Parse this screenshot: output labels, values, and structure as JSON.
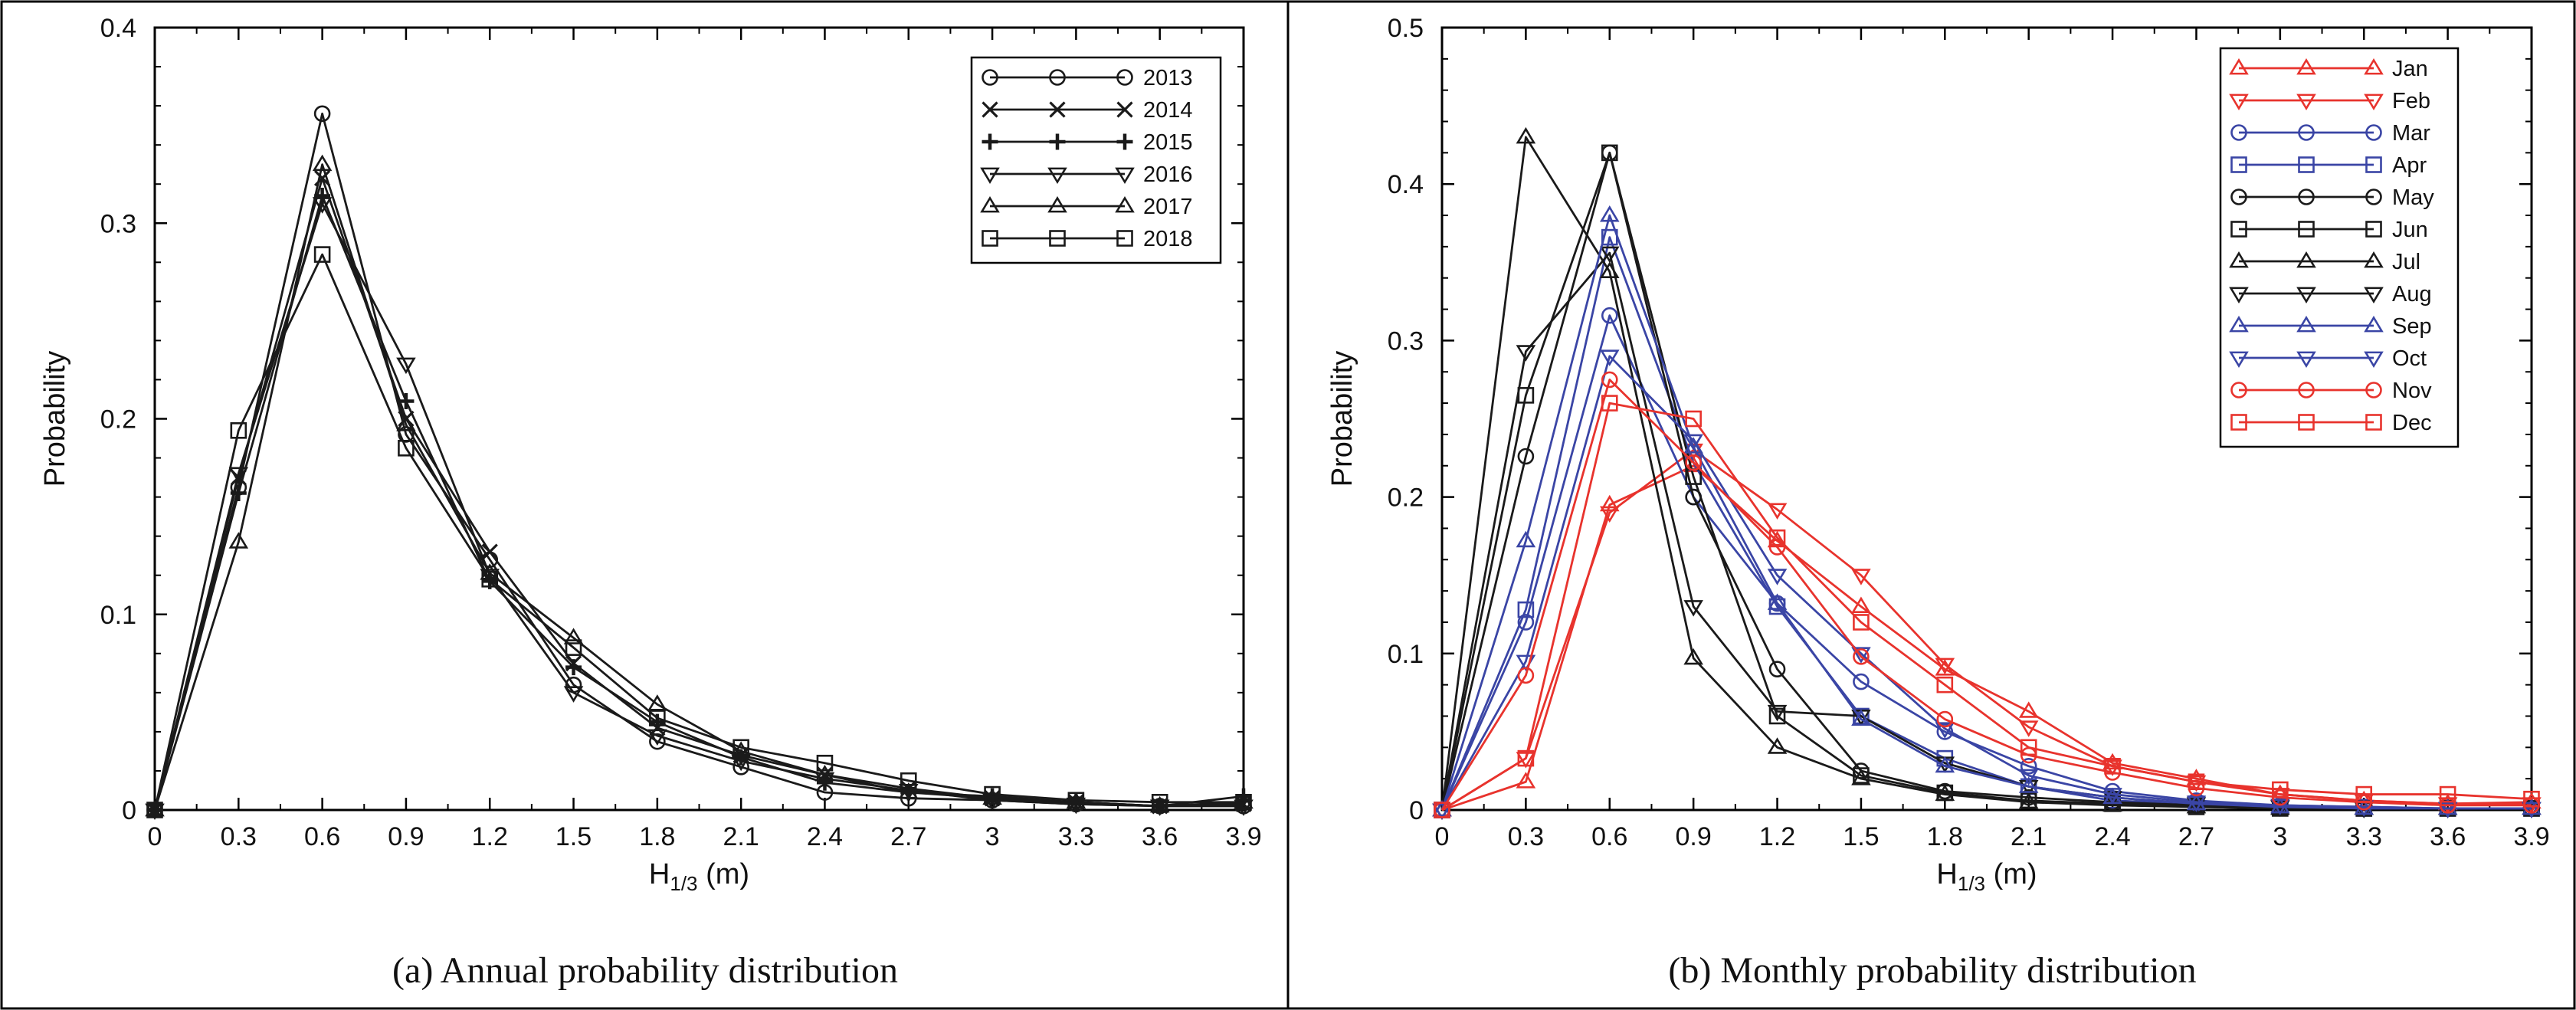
{
  "chart_data": [
    {
      "type": "line",
      "caption": "(a) Annual probability distribution",
      "xlabel_main": "H",
      "xlabel_sub": "1/3",
      "xlabel_unit": " (m)",
      "ylabel": "Probability",
      "xlim": [
        0,
        3.9
      ],
      "ylim": [
        0,
        0.4
      ],
      "x_ticks": [
        "0",
        "0.3",
        "0.6",
        "0.9",
        "1.2",
        "1.5",
        "1.8",
        "2.1",
        "2.4",
        "2.7",
        "3",
        "3.3",
        "3.6",
        "3.9"
      ],
      "y_ticks": [
        "0",
        "0.1",
        "0.2",
        "0.3",
        "0.4"
      ],
      "x": [
        0,
        0.3,
        0.6,
        0.9,
        1.2,
        1.5,
        1.8,
        2.1,
        2.4,
        2.7,
        3.0,
        3.3,
        3.6,
        3.9
      ],
      "legend_position": "top-right",
      "series": [
        {
          "name": "2013",
          "marker": "circle",
          "color": "#1a1a1a",
          "values": [
            0,
            0.165,
            0.356,
            0.192,
            0.128,
            0.064,
            0.035,
            0.022,
            0.009,
            0.006,
            0.005,
            0.003,
            0.002,
            0.002
          ]
        },
        {
          "name": "2014",
          "marker": "x",
          "color": "#1a1a1a",
          "values": [
            0,
            0.17,
            0.323,
            0.2,
            0.132,
            0.075,
            0.042,
            0.028,
            0.018,
            0.011,
            0.006,
            0.004,
            0.002,
            0.003
          ]
        },
        {
          "name": "2015",
          "marker": "plus",
          "color": "#1a1a1a",
          "values": [
            0,
            0.162,
            0.314,
            0.209,
            0.117,
            0.073,
            0.045,
            0.027,
            0.014,
            0.009,
            0.007,
            0.004,
            0.002,
            0.007
          ]
        },
        {
          "name": "2016",
          "marker": "tri-down",
          "color": "#1a1a1a",
          "values": [
            0,
            0.172,
            0.31,
            0.228,
            0.12,
            0.06,
            0.038,
            0.025,
            0.016,
            0.01,
            0.005,
            0.003,
            0.002,
            0.002
          ]
        },
        {
          "name": "2017",
          "marker": "tri-up",
          "color": "#1a1a1a",
          "values": [
            0,
            0.137,
            0.33,
            0.197,
            0.121,
            0.088,
            0.054,
            0.03,
            0.018,
            0.009,
            0.006,
            0.004,
            0.002,
            0.004
          ]
        },
        {
          "name": "2018",
          "marker": "square",
          "color": "#1a1a1a",
          "values": [
            0,
            0.194,
            0.284,
            0.185,
            0.118,
            0.083,
            0.047,
            0.032,
            0.024,
            0.015,
            0.008,
            0.005,
            0.004,
            0.004
          ]
        }
      ]
    },
    {
      "type": "line",
      "caption": "(b) Monthly probability distribution",
      "xlabel_main": "H",
      "xlabel_sub": "1/3",
      "xlabel_unit": " (m)",
      "ylabel": "Probability",
      "xlim": [
        0,
        3.9
      ],
      "ylim": [
        0,
        0.5
      ],
      "x_ticks": [
        "0",
        "0.3",
        "0.6",
        "0.9",
        "1.2",
        "1.5",
        "1.8",
        "2.1",
        "2.4",
        "2.7",
        "3",
        "3.3",
        "3.6",
        "3.9"
      ],
      "y_ticks": [
        "0",
        "0.1",
        "0.2",
        "0.3",
        "0.4",
        "0.5"
      ],
      "x": [
        0,
        0.3,
        0.6,
        0.9,
        1.2,
        1.5,
        1.8,
        2.1,
        2.4,
        2.7,
        3.0,
        3.3,
        3.6,
        3.9
      ],
      "legend_position": "top-right",
      "series": [
        {
          "name": "Jan",
          "marker": "tri-up",
          "color": "#e8332d",
          "values": [
            0,
            0.018,
            0.195,
            0.22,
            0.172,
            0.13,
            0.09,
            0.063,
            0.03,
            0.02,
            0.01,
            0.006,
            0.004,
            0.005
          ]
        },
        {
          "name": "Feb",
          "marker": "tri-down",
          "color": "#e8332d",
          "values": [
            0,
            0.033,
            0.19,
            0.23,
            0.192,
            0.15,
            0.093,
            0.053,
            0.028,
            0.018,
            0.01,
            0.006,
            0.004,
            0.004
          ]
        },
        {
          "name": "Mar",
          "marker": "circle",
          "color": "#3a45a5",
          "values": [
            0,
            0.12,
            0.316,
            0.2,
            0.132,
            0.082,
            0.05,
            0.028,
            0.012,
            0.006,
            0.003,
            0.002,
            0.001,
            0.001
          ]
        },
        {
          "name": "Apr",
          "marker": "square",
          "color": "#3a45a5",
          "values": [
            0,
            0.128,
            0.366,
            0.222,
            0.13,
            0.06,
            0.033,
            0.015,
            0.006,
            0.004,
            0.002,
            0.001,
            0.001,
            0.001
          ]
        },
        {
          "name": "May",
          "marker": "circle",
          "color": "#1a1a1a",
          "values": [
            0,
            0.226,
            0.42,
            0.2,
            0.09,
            0.025,
            0.012,
            0.008,
            0.005,
            0.003,
            0.002,
            0.001,
            0.001,
            0.001
          ]
        },
        {
          "name": "Jun",
          "marker": "square",
          "color": "#1a1a1a",
          "values": [
            0,
            0.265,
            0.42,
            0.213,
            0.06,
            0.022,
            0.011,
            0.006,
            0.004,
            0.002,
            0.001,
            0.001,
            0.001,
            0.001
          ]
        },
        {
          "name": "Jul",
          "marker": "tri-up",
          "color": "#1a1a1a",
          "values": [
            0,
            0.43,
            0.344,
            0.097,
            0.04,
            0.02,
            0.01,
            0.005,
            0.003,
            0.002,
            0.001,
            0.001,
            0.001,
            0.001
          ]
        },
        {
          "name": "Aug",
          "marker": "tri-down",
          "color": "#1a1a1a",
          "values": [
            0,
            0.293,
            0.356,
            0.13,
            0.063,
            0.06,
            0.03,
            0.015,
            0.008,
            0.004,
            0.002,
            0.001,
            0.001,
            0.001
          ]
        },
        {
          "name": "Sep",
          "marker": "tri-up",
          "color": "#3a45a5",
          "values": [
            0,
            0.172,
            0.38,
            0.232,
            0.132,
            0.058,
            0.028,
            0.015,
            0.008,
            0.004,
            0.002,
            0.001,
            0.001,
            0.001
          ]
        },
        {
          "name": "Oct",
          "marker": "tri-down",
          "color": "#3a45a5",
          "values": [
            0,
            0.095,
            0.29,
            0.236,
            0.15,
            0.1,
            0.052,
            0.022,
            0.01,
            0.005,
            0.003,
            0.002,
            0.001,
            0.001
          ]
        },
        {
          "name": "Nov",
          "marker": "circle",
          "color": "#e8332d",
          "values": [
            0,
            0.086,
            0.275,
            0.222,
            0.168,
            0.098,
            0.058,
            0.035,
            0.024,
            0.014,
            0.008,
            0.005,
            0.003,
            0.003
          ]
        },
        {
          "name": "Dec",
          "marker": "square",
          "color": "#e8332d",
          "values": [
            0,
            0.033,
            0.26,
            0.25,
            0.174,
            0.12,
            0.08,
            0.04,
            0.028,
            0.018,
            0.013,
            0.01,
            0.01,
            0.007
          ]
        }
      ]
    }
  ]
}
